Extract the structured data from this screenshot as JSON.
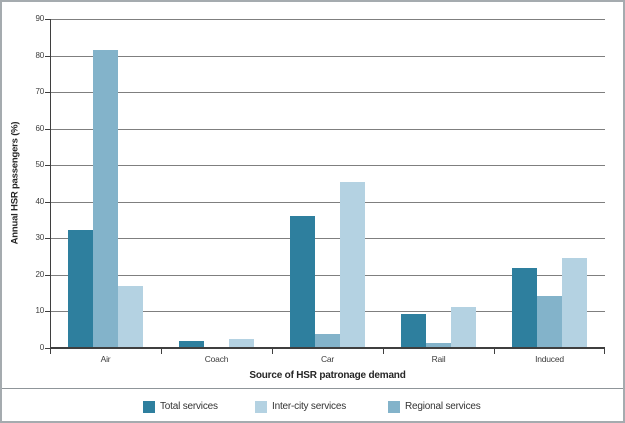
{
  "chart_data": {
    "type": "bar",
    "title": "",
    "categories": [
      "Air",
      "Coach",
      "Car",
      "Rail",
      "Induced"
    ],
    "series": [
      {
        "name": "Total services",
        "color": "#2e7f9e",
        "values": [
          32.3,
          2.0,
          36.0,
          9.2,
          21.8
        ]
      },
      {
        "name": "Regional services",
        "color": "#83b3ca",
        "values": [
          81.4,
          0.4,
          3.7,
          1.4,
          14.2
        ]
      },
      {
        "name": "Inter-city services",
        "color": "#b4d2e2",
        "values": [
          17.0,
          2.5,
          45.5,
          11.2,
          24.5
        ]
      }
    ],
    "xlabel": "Source of HSR patronage demand",
    "ylabel": "Annual HSR passengers (%)",
    "ylim": [
      0,
      90
    ],
    "yticks": [
      0,
      10,
      20,
      30,
      40,
      50,
      60,
      70,
      80,
      90
    ],
    "grid": "horizontal",
    "legend_position": "bottom"
  },
  "legend": {
    "items": [
      {
        "label": "Total services",
        "color": "#2e7f9e"
      },
      {
        "label": "Inter-city services",
        "color": "#b4d2e2"
      },
      {
        "label": "Regional services",
        "color": "#83b3ca"
      }
    ]
  }
}
